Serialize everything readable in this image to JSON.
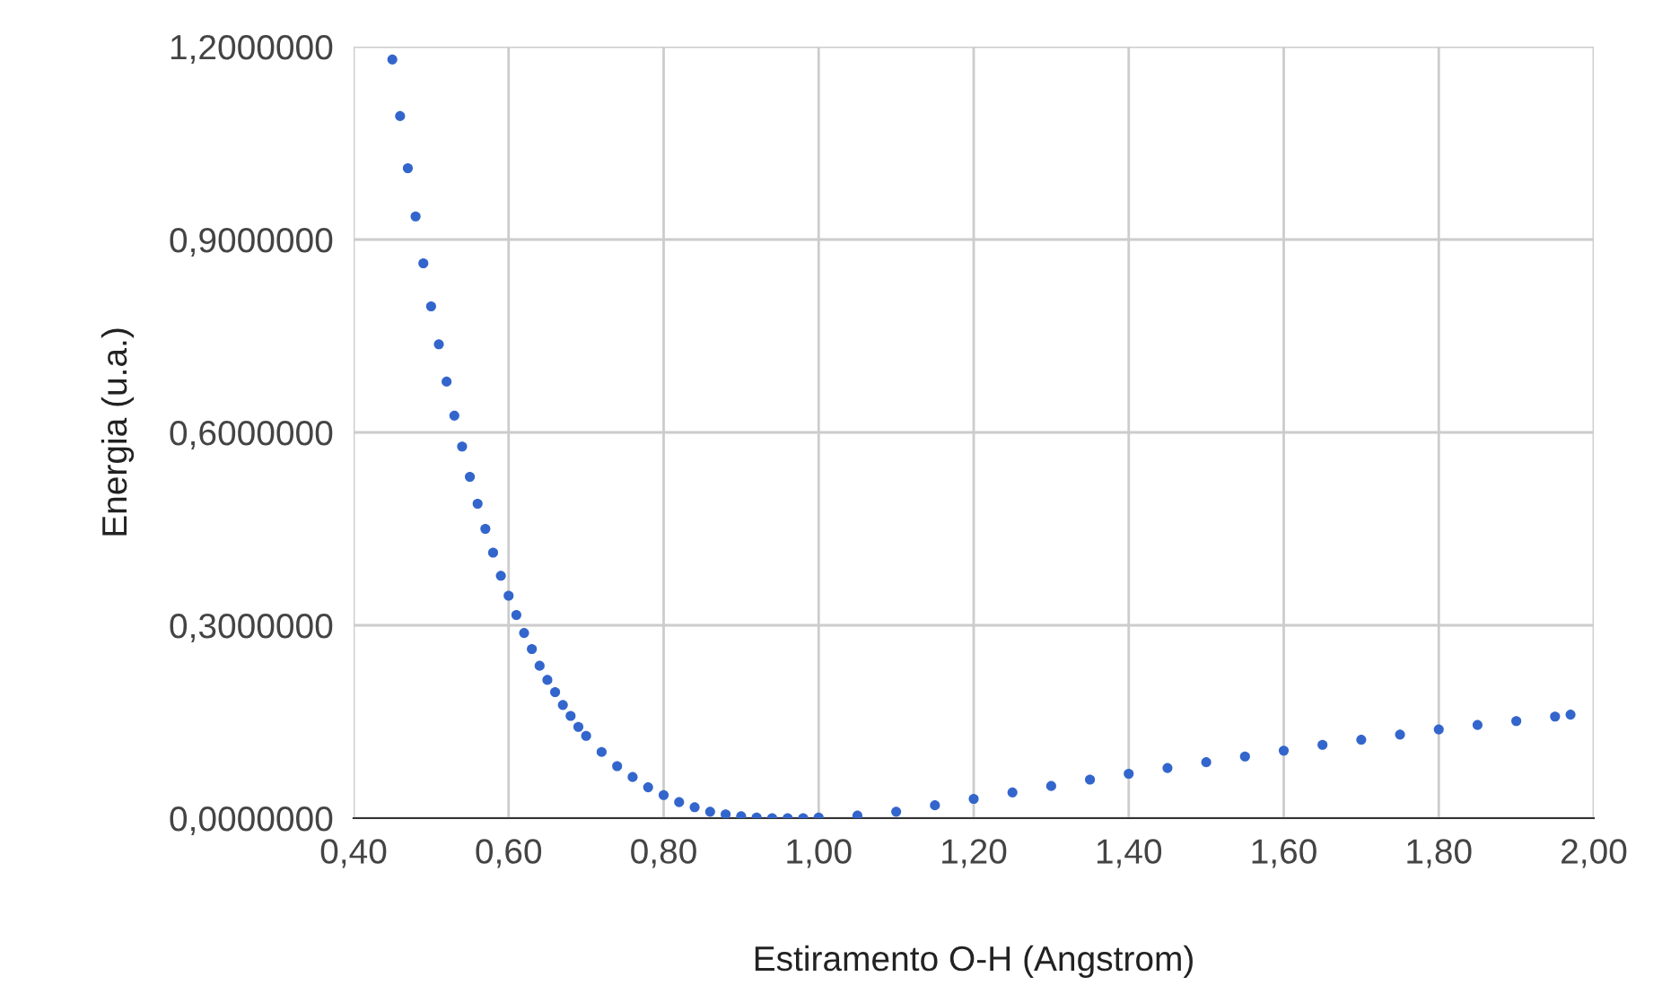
{
  "chart_data": {
    "type": "scatter",
    "xlabel": "Estiramento O-H (Angstrom)",
    "ylabel": "Energia (u.a.)",
    "x": [
      0.45,
      0.46,
      0.47,
      0.48,
      0.49,
      0.5,
      0.51,
      0.52,
      0.53,
      0.54,
      0.55,
      0.56,
      0.57,
      0.58,
      0.59,
      0.6,
      0.61,
      0.62,
      0.63,
      0.64,
      0.65,
      0.66,
      0.67,
      0.68,
      0.69,
      0.7,
      0.72,
      0.74,
      0.76,
      0.78,
      0.8,
      0.82,
      0.84,
      0.86,
      0.88,
      0.9,
      0.92,
      0.94,
      0.96,
      0.98,
      1.0,
      1.05,
      1.1,
      1.15,
      1.2,
      1.25,
      1.3,
      1.35,
      1.4,
      1.45,
      1.5,
      1.55,
      1.6,
      1.65,
      1.7,
      1.75,
      1.8,
      1.85,
      1.9,
      1.95,
      1.97
    ],
    "series": [
      {
        "color": "#3366cc",
        "values": [
          1.18,
          1.092,
          1.011,
          0.936,
          0.863,
          0.796,
          0.737,
          0.679,
          0.626,
          0.578,
          0.531,
          0.489,
          0.45,
          0.413,
          0.377,
          0.346,
          0.316,
          0.288,
          0.263,
          0.237,
          0.215,
          0.196,
          0.176,
          0.159,
          0.142,
          0.128,
          0.103,
          0.081,
          0.064,
          0.048,
          0.036,
          0.025,
          0.017,
          0.01,
          0.006,
          0.003,
          0.001,
          0.0,
          0.0,
          0.0,
          0.001,
          0.004,
          0.01,
          0.02,
          0.03,
          0.04,
          0.05,
          0.06,
          0.069,
          0.078,
          0.087,
          0.096,
          0.105,
          0.114,
          0.122,
          0.13,
          0.138,
          0.145,
          0.151,
          0.158,
          0.161
        ]
      }
    ],
    "xlim": [
      0.4,
      2.0
    ],
    "ylim": [
      0.0,
      1.2
    ],
    "xticks": [
      {
        "value": 0.4,
        "label": "0,40"
      },
      {
        "value": 0.6,
        "label": "0,60"
      },
      {
        "value": 0.8,
        "label": "0,80"
      },
      {
        "value": 1.0,
        "label": "1,00"
      },
      {
        "value": 1.2,
        "label": "1,20"
      },
      {
        "value": 1.4,
        "label": "1,40"
      },
      {
        "value": 1.6,
        "label": "1,60"
      },
      {
        "value": 1.8,
        "label": "1,80"
      },
      {
        "value": 2.0,
        "label": "2,00"
      }
    ],
    "yticks": [
      {
        "value": 0.0,
        "label": "0,0000000"
      },
      {
        "value": 0.3,
        "label": "0,3000000"
      },
      {
        "value": 0.6,
        "label": "0,6000000"
      },
      {
        "value": 0.9,
        "label": "0,9000000"
      },
      {
        "value": 1.2,
        "label": "1,2000000"
      }
    ],
    "grid": true,
    "marker": "circle"
  }
}
